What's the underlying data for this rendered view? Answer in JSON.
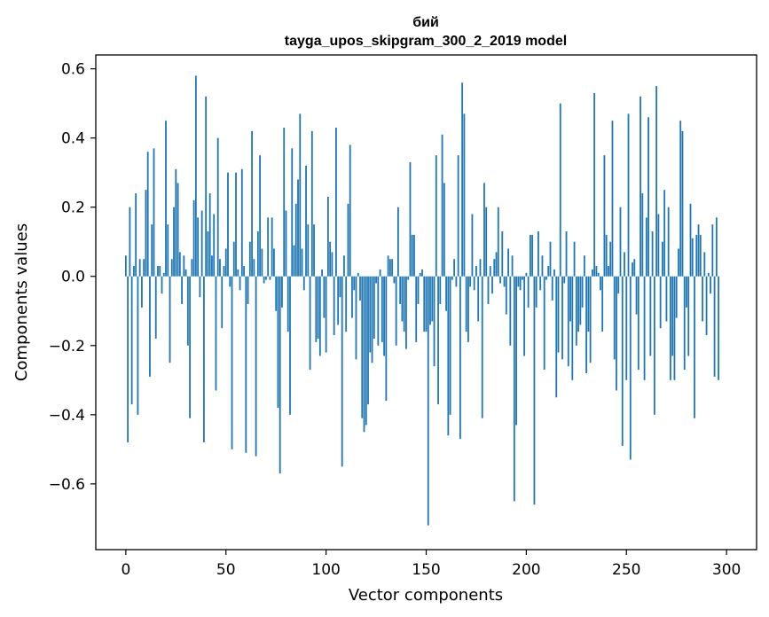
{
  "chart_data": {
    "type": "bar",
    "title": "бий",
    "subtitle": "tayga_upos_skipgram_300_2_2019 model",
    "xlabel": "Vector components",
    "ylabel": "Components values",
    "xlim": [
      -15,
      315
    ],
    "ylim": [
      -0.79,
      0.64
    ],
    "xticks": [
      0,
      50,
      100,
      150,
      200,
      250,
      300
    ],
    "xtick_labels": [
      "0",
      "50",
      "100",
      "150",
      "200",
      "250",
      "300"
    ],
    "yticks": [
      -0.6,
      -0.4,
      -0.2,
      0.0,
      0.2,
      0.4,
      0.6
    ],
    "ytick_labels": [
      "−0.6",
      "−0.4",
      "−0.2",
      "0.0",
      "0.2",
      "0.4",
      "0.6"
    ],
    "bar_color": "#1f77b4",
    "values": [
      0.06,
      -0.48,
      0.2,
      -0.37,
      0.03,
      0.24,
      -0.4,
      0.05,
      -0.09,
      0.05,
      0.25,
      0.36,
      -0.29,
      0.15,
      0.37,
      -0.18,
      0.03,
      0.03,
      -0.05,
      0.01,
      0.45,
      0.15,
      -0.25,
      0.05,
      0.2,
      0.31,
      0.27,
      0.07,
      -0.08,
      0.06,
      0.02,
      -0.2,
      -0.41,
      0.05,
      0.22,
      0.58,
      0.17,
      -0.06,
      0.19,
      -0.48,
      0.52,
      0.13,
      0.24,
      0.06,
      0.18,
      -0.33,
      0.4,
      0.05,
      -0.15,
      0.03,
      0.08,
      0.3,
      -0.03,
      -0.5,
      0.1,
      0.3,
      0.02,
      -0.04,
      0.31,
      0.03,
      -0.51,
      -0.08,
      0.1,
      0.42,
      0.05,
      -0.52,
      0.13,
      0.35,
      0.08,
      -0.02,
      -0.01,
      0.17,
      -0.01,
      0.17,
      0.08,
      -0.1,
      -0.38,
      -0.57,
      -0.09,
      0.43,
      0.19,
      -0.16,
      -0.4,
      0.37,
      0.09,
      0.21,
      0.28,
      0.47,
      0.08,
      -0.04,
      0.32,
      0.15,
      -0.27,
      0.42,
      0.15,
      -0.19,
      -0.18,
      -0.23,
      0.02,
      -0.12,
      -0.22,
      0.23,
      0.1,
      0.07,
      -0.17,
      0.43,
      -0.14,
      -0.06,
      -0.55,
      0.06,
      -0.16,
      0.21,
      0.38,
      -0.12,
      -0.04,
      -0.24,
      0.01,
      -0.07,
      -0.41,
      -0.45,
      -0.43,
      -0.37,
      -0.22,
      -0.25,
      -0.18,
      -0.02,
      -0.2,
      0.02,
      -0.19,
      -0.23,
      -0.36,
      0.06,
      0.05,
      0.05,
      -0.02,
      -0.2,
      0.2,
      -0.08,
      -0.13,
      -0.16,
      -0.21,
      -0.01,
      0.33,
      0.12,
      0.12,
      -0.19,
      -0.08,
      0.01,
      0.02,
      -0.16,
      -0.16,
      -0.72,
      -0.14,
      -0.13,
      -0.26,
      0.35,
      -0.37,
      -0.08,
      0.41,
      0.27,
      -0.1,
      -0.46,
      -0.4,
      -0.01,
      0.05,
      -0.03,
      0.35,
      -0.47,
      0.56,
      0.47,
      -0.16,
      -0.19,
      -0.03,
      0.18,
      -0.04,
      0.03,
      -0.13,
      0.05,
      -0.41,
      0.27,
      0.2,
      -0.08,
      0.03,
      -0.05,
      0.05,
      0.07,
      0.2,
      -0.02,
      0.13,
      -0.03,
      -0.11,
      0.08,
      -0.2,
      0.06,
      -0.65,
      -0.43,
      -0.03,
      -0.04,
      -0.01,
      -0.23,
      0.01,
      -0.09,
      0.12,
      0.12,
      -0.66,
      -0.09,
      0.13,
      -0.04,
      0.06,
      -0.27,
      -0.01,
      0.03,
      0.1,
      -0.07,
      0.02,
      -0.35,
      -0.22,
      0.5,
      -0.24,
      -0.02,
      0.13,
      -0.26,
      -0.13,
      -0.3,
      0.1,
      -0.2,
      -0.16,
      -0.14,
      -0.09,
      0.06,
      -0.28,
      -0.16,
      -0.25,
      0.02,
      0.53,
      0.03,
      0.01,
      -0.04,
      -0.16,
      0.35,
      0.12,
      0.03,
      0.1,
      0.45,
      -0.24,
      -0.33,
      -0.05,
      0.2,
      -0.49,
      0.07,
      -0.3,
      0.47,
      -0.53,
      0.04,
      0.05,
      -0.11,
      -0.27,
      0.52,
      0.24,
      -0.3,
      0.17,
      0.46,
      -0.23,
      0.13,
      -0.4,
      0.55,
      0.18,
      -0.15,
      0.1,
      0.25,
      -0.13,
      0.2,
      -0.3,
      -0.23,
      -0.3,
      -0.12,
      0.08,
      0.45,
      0.42,
      -0.27,
      -0.09,
      -0.23,
      0.21,
      0.11,
      -0.41,
      0.12,
      0.15,
      0.12,
      -0.13,
      0.07,
      -0.17,
      0.01,
      -0.05,
      0.15,
      -0.29,
      0.17,
      -0.3
    ]
  }
}
